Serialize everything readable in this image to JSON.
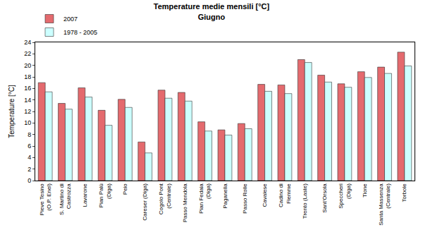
{
  "chart_data": {
    "type": "bar",
    "title": "Temperature medie mensili [°C]",
    "subtitle": "Giugno",
    "y_label": "Temperature [°C]",
    "categories": [
      "Pieve Tesino (O.P. Enel)",
      "S. Martino di Castrozza",
      "Lavarone",
      "Pian Palù (Diga)",
      "Peio",
      "Careser (Diga)",
      "Cogolo Pont (Centrale)",
      "Passo Mendola",
      "Pian Fedaia (Diga)",
      "Paganella",
      "Passo Rolle",
      "Cavalese",
      "Cadino di Fiemme",
      "Trento (Laste)",
      "Sant'Orsola",
      "Speccheri (Diga)",
      "Tione",
      "Santa Massenza (Centrale)",
      "Torbole"
    ],
    "series": [
      {
        "name": "2007",
        "color": "#e46a6e",
        "values": [
          17.0,
          13.4,
          16.1,
          12.2,
          14.1,
          6.7,
          15.7,
          15.3,
          10.2,
          8.8,
          9.9,
          16.7,
          16.6,
          21.0,
          18.3,
          16.8,
          18.9,
          19.7,
          22.3
        ]
      },
      {
        "name": "1978 - 2005",
        "color": "#ccffff",
        "values": [
          15.4,
          12.4,
          14.5,
          9.6,
          12.7,
          4.8,
          14.3,
          13.8,
          8.6,
          7.9,
          9.0,
          15.5,
          15.1,
          20.5,
          17.1,
          16.2,
          17.9,
          18.6,
          19.9
        ]
      }
    ],
    "ylim": [
      0,
      24
    ],
    "yticks": [
      0,
      2,
      4,
      6,
      8,
      10,
      12,
      14,
      16,
      18,
      20,
      22,
      24
    ],
    "grid": false,
    "legend": "top left"
  }
}
